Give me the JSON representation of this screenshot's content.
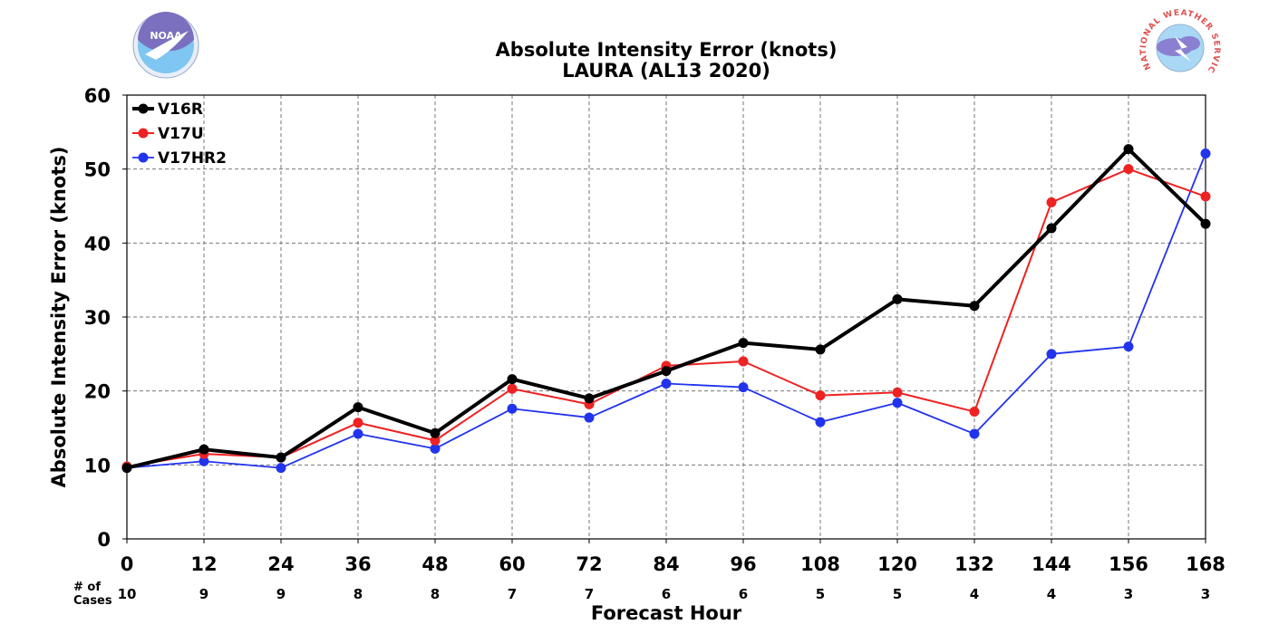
{
  "chart_data": {
    "type": "line",
    "title": "Absolute Intensity Error (knots)",
    "subtitle": "LAURA (AL13 2020)",
    "xlabel": "Forecast Hour",
    "ylabel": "Absolute Intensity Error (knots)",
    "xlim": [
      0,
      168
    ],
    "ylim": [
      0,
      60
    ],
    "x": [
      0,
      12,
      24,
      36,
      48,
      60,
      72,
      84,
      96,
      108,
      120,
      132,
      144,
      156,
      168
    ],
    "x_tick_labels": [
      "0",
      "12",
      "24",
      "36",
      "48",
      "60",
      "72",
      "84",
      "96",
      "108",
      "120",
      "132",
      "144",
      "156",
      "168"
    ],
    "y_ticks": [
      0,
      10,
      20,
      30,
      40,
      50,
      60
    ],
    "y_tick_labels": [
      "0",
      "10",
      "20",
      "30",
      "40",
      "50",
      "60"
    ],
    "cases_label": "# of\nCases",
    "cases": [
      "10",
      "9",
      "9",
      "8",
      "8",
      "7",
      "7",
      "6",
      "6",
      "5",
      "5",
      "4",
      "4",
      "3",
      "3"
    ],
    "grid": true,
    "legend_position": "top-left",
    "series": [
      {
        "name": "V16R",
        "color": "#000000",
        "values": [
          9.6,
          12.1,
          11.0,
          17.8,
          14.3,
          21.6,
          19.0,
          22.7,
          26.5,
          25.6,
          32.4,
          31.5,
          42.0,
          52.7,
          42.6
        ]
      },
      {
        "name": "V17U",
        "color": "#ee2222",
        "values": [
          9.8,
          11.5,
          11.0,
          15.7,
          13.3,
          20.3,
          18.2,
          23.4,
          24.0,
          19.4,
          19.8,
          17.2,
          45.5,
          50.0,
          46.3
        ]
      },
      {
        "name": "V17HR2",
        "color": "#2233ee",
        "values": [
          9.6,
          10.5,
          9.6,
          14.2,
          12.2,
          17.6,
          16.4,
          21.0,
          20.5,
          15.8,
          18.4,
          14.2,
          25.0,
          26.0,
          52.1
        ]
      }
    ]
  },
  "logos": {
    "left": {
      "text": "NOAA",
      "icon": "noaa-logo-icon",
      "color": "#3a8fd9"
    },
    "right": {
      "text": "NATIONAL WEATHER SERVICE",
      "icon": "nws-logo-icon",
      "color": "#e05050"
    }
  }
}
